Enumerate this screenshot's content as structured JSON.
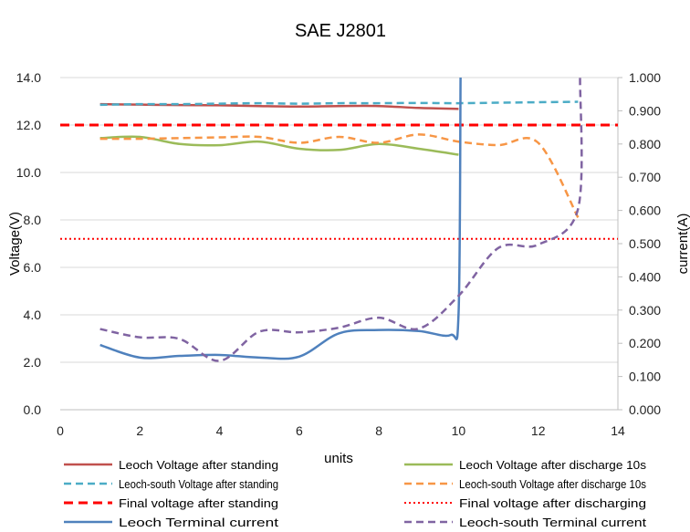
{
  "chart_data": {
    "type": "line",
    "title": "SAE J2801",
    "xlabel": "units",
    "ylabel_left": "Voltage(V)",
    "ylabel_right": "current(A)",
    "xlim": [
      0,
      14
    ],
    "ylim_left": [
      0,
      14
    ],
    "ylim_right": [
      0,
      1
    ],
    "x_ticks": [
      "0",
      "2",
      "4",
      "6",
      "8",
      "10",
      "12",
      "14"
    ],
    "y_left_ticks": [
      "0.0",
      "2.0",
      "4.0",
      "6.0",
      "8.0",
      "10.0",
      "12.0",
      "14.0"
    ],
    "y_right_ticks": [
      "0.000",
      "0.100",
      "0.200",
      "0.300",
      "0.400",
      "0.500",
      "0.600",
      "0.700",
      "0.800",
      "0.900",
      "1.000"
    ],
    "grid": "horizontal major gridlines",
    "legend_position": "bottom",
    "series": [
      {
        "name": "Leoch Voltage after standing",
        "axis": "left",
        "color": "#c0504d",
        "dash": "solid",
        "x": [
          1,
          2,
          3,
          4,
          5,
          6,
          7,
          8,
          9,
          10
        ],
        "y": [
          12.88,
          12.86,
          12.84,
          12.83,
          12.8,
          12.78,
          12.8,
          12.8,
          12.72,
          12.68
        ]
      },
      {
        "name": "Leoch Voltage after discharge 10s",
        "axis": "left",
        "color": "#9bbb59",
        "dash": "solid",
        "x": [
          1,
          2,
          3,
          4,
          5,
          6,
          7,
          8,
          9,
          10
        ],
        "y": [
          11.45,
          11.5,
          11.2,
          11.15,
          11.3,
          11.0,
          10.95,
          11.2,
          11.0,
          10.75
        ]
      },
      {
        "name": "Leoch-south Voltage after standing",
        "axis": "left",
        "color": "#4bacc6",
        "dash": "dash",
        "x": [
          1,
          2,
          3,
          4,
          5,
          6,
          7,
          8,
          9,
          10,
          11,
          12,
          13
        ],
        "y": [
          12.85,
          12.88,
          12.88,
          12.9,
          12.92,
          12.9,
          12.92,
          12.92,
          12.93,
          12.92,
          12.94,
          12.96,
          12.98
        ]
      },
      {
        "name": "Leoch-south Voltage after discharge 10s",
        "axis": "left",
        "color": "#f79646",
        "dash": "dash",
        "x": [
          1,
          2,
          3,
          4,
          5,
          6,
          7,
          8,
          9,
          10,
          11,
          12,
          13
        ],
        "y": [
          11.42,
          11.42,
          11.45,
          11.48,
          11.5,
          11.25,
          11.5,
          11.25,
          11.6,
          11.3,
          11.15,
          11.25,
          8.1
        ]
      },
      {
        "name": "Final voltage after standing",
        "axis": "left",
        "color": "#ff0000",
        "dash": "dash-heavy",
        "x": [
          0,
          14
        ],
        "y": [
          12.0,
          12.0
        ]
      },
      {
        "name": "Final voltage after discharging",
        "axis": "left",
        "color": "#ff0000",
        "dash": "dot",
        "x": [
          0,
          14
        ],
        "y": [
          7.2,
          7.2
        ]
      },
      {
        "name": "Leoch Terminal current",
        "axis": "right",
        "color": "#4f81bd",
        "dash": "solid",
        "x": [
          1,
          2,
          3,
          4,
          5,
          6,
          7,
          8,
          9,
          9.8,
          10,
          10.05
        ],
        "y": [
          0.195,
          0.157,
          0.162,
          0.165,
          0.157,
          0.16,
          0.23,
          0.24,
          0.237,
          0.225,
          0.29,
          1.0
        ]
      },
      {
        "name": "Leoch-south Terminal current",
        "axis": "right",
        "color": "#8064a2",
        "dash": "dash",
        "x": [
          1,
          2,
          3,
          4,
          5,
          6,
          7,
          8,
          9,
          10,
          11,
          12,
          13,
          13.05
        ],
        "y": [
          0.243,
          0.218,
          0.213,
          0.147,
          0.235,
          0.233,
          0.247,
          0.277,
          0.244,
          0.343,
          0.487,
          0.497,
          0.605,
          1.0
        ]
      }
    ]
  }
}
